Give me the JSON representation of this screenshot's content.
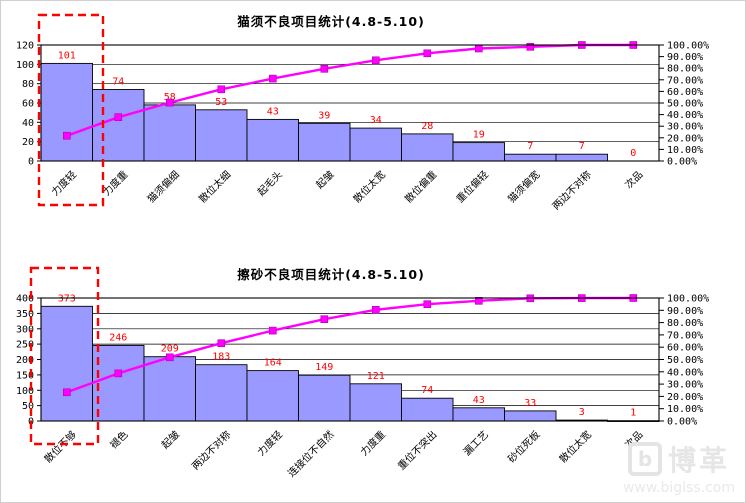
{
  "window": {
    "background": "#ffffff"
  },
  "colors": {
    "bar_fill": "#9999ff",
    "bar_border": "#000000",
    "line": "#ff00ff",
    "data_label": "#ff0000",
    "grid": "#000000",
    "annotation": "#ff0000"
  },
  "watermark": {
    "logo": "b",
    "name": "博革",
    "url": "www.biglss.com"
  },
  "chart_data": [
    {
      "type": "bar",
      "subtype": "pareto",
      "title": "猫须不良项目统计(4.8-5.10)",
      "categories": [
        "力度轻",
        "力度重",
        "猫须偏细",
        "散位太细",
        "起毛头",
        "起皱",
        "散位太宽",
        "散位偏重",
        "重位偏轻",
        "猫须偏宽",
        "两边不对称",
        "次品"
      ],
      "values": [
        101,
        74,
        58,
        53,
        43,
        39,
        34,
        28,
        19,
        7,
        7,
        0
      ],
      "cumulative_pct": [
        21.81,
        37.8,
        50.32,
        61.77,
        71.06,
        79.48,
        86.83,
        92.87,
        96.98,
        98.49,
        100.0,
        100.0
      ],
      "xlabel": "",
      "ylabel": "",
      "ylim": [
        0,
        120
      ],
      "y_ticks": [
        0,
        20,
        40,
        60,
        80,
        100,
        120
      ],
      "y2lim": [
        0,
        100
      ],
      "y2_ticks": [
        "100.00%",
        "90.00%",
        "80.00%",
        "70.00%",
        "60.00%",
        "50.00%",
        "40.00%",
        "30.00%",
        "20.00%",
        "10.00%",
        "0.00%"
      ],
      "grid": "horizontal",
      "legend": "none",
      "annotation": {
        "style": "red-dashed-box",
        "target": "first-bar"
      }
    },
    {
      "type": "bar",
      "subtype": "pareto",
      "title": "擦砂不良项目统计(4.8-5.10)",
      "categories": [
        "散位不够",
        "褪色",
        "起皱",
        "两边不对称",
        "力度轻",
        "连接位不自然",
        "力度重",
        "重位不突出",
        "漏工艺",
        "砂位死板",
        "散位太宽",
        "次品"
      ],
      "values": [
        373,
        246,
        209,
        183,
        164,
        149,
        121,
        74,
        43,
        33,
        3,
        1
      ],
      "cumulative_pct": [
        23.33,
        38.71,
        51.78,
        63.23,
        73.48,
        82.8,
        90.37,
        95.0,
        97.69,
        99.75,
        99.94,
        100.0
      ],
      "xlabel": "",
      "ylabel": "",
      "ylim": [
        0,
        400
      ],
      "y_ticks": [
        0,
        50,
        100,
        150,
        200,
        250,
        300,
        350,
        400
      ],
      "y2lim": [
        0,
        100
      ],
      "y2_ticks": [
        "100.00%",
        "90.00%",
        "80.00%",
        "70.00%",
        "60.00%",
        "50.00%",
        "40.00%",
        "30.00%",
        "20.00%",
        "10.00%",
        "0.00%"
      ],
      "grid": "horizontal",
      "legend": "none",
      "annotation": {
        "style": "red-dashed-box",
        "target": "first-bar"
      }
    }
  ]
}
